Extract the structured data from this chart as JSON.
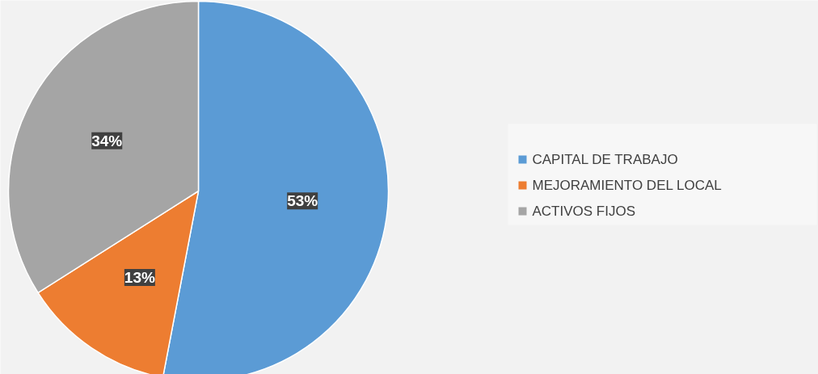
{
  "chart_data": {
    "type": "pie",
    "categories": [
      "CAPITAL DE TRABAJO",
      "MEJORAMIENTO DEL LOCAL",
      "ACTIVOS FIJOS"
    ],
    "values": [
      53,
      13,
      34
    ],
    "colors": [
      "#5b9bd5",
      "#ed7d31",
      "#a5a5a5"
    ],
    "value_labels": [
      "53%",
      "13%",
      "34%"
    ],
    "legend": "right"
  }
}
